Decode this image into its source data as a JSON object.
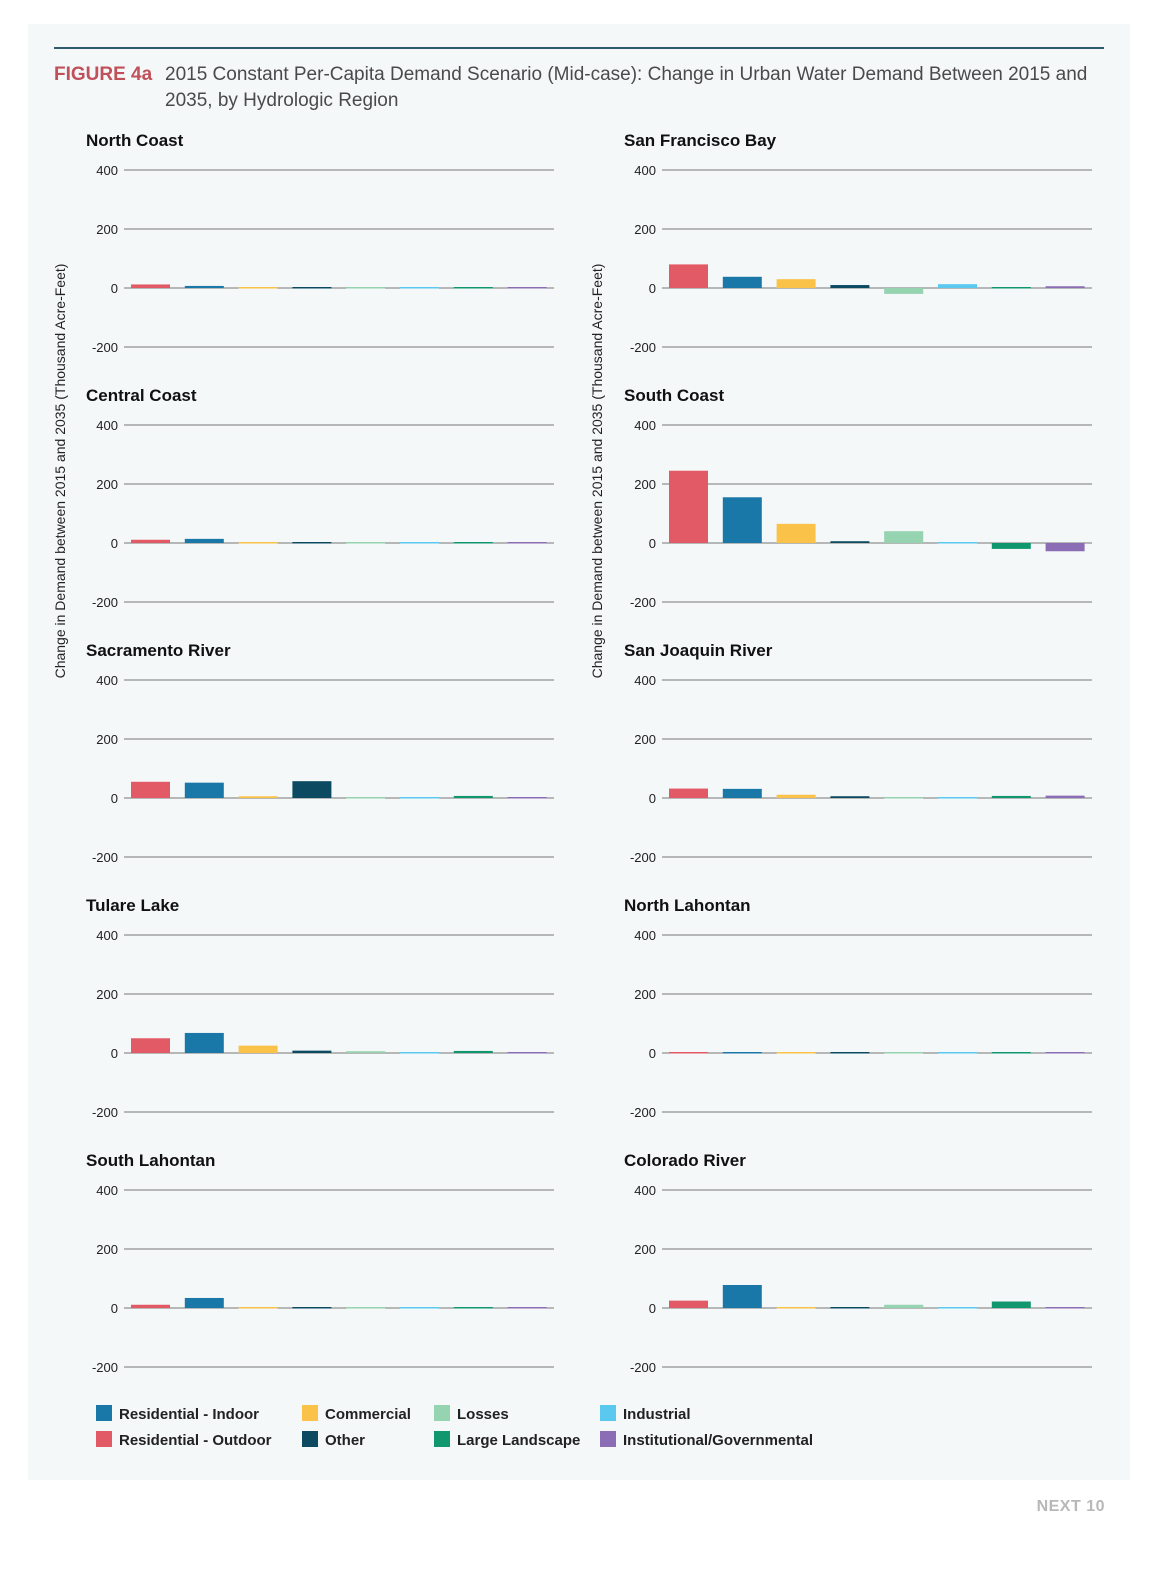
{
  "figure": {
    "number": "FIGURE 4a",
    "title": "2015 Constant Per-Capita Demand Scenario (Mid-case): Change in Urban Water Demand Between 2015 and 2035, by Hydrologic Region"
  },
  "ylabel": "Change in Demand between 2015 and 2035 (Thousand Acre-Feet)",
  "footer": "NEXT 10",
  "colors": {
    "Residential - Outdoor": "#e35a67",
    "Residential - Indoor": "#1a78a8",
    "Commercial": "#fbc24a",
    "Other": "#0c4a62",
    "Losses": "#96d3b0",
    "Industrial": "#5bc8f0",
    "Large Landscape": "#10976e",
    "Institutional/Governmental": "#8b6db5"
  },
  "legend": [
    {
      "label": "Residential - Indoor",
      "color": "#1a78a8"
    },
    {
      "label": "Residential - Outdoor",
      "color": "#e35a67"
    },
    {
      "label": "Commercial",
      "color": "#fbc24a"
    },
    {
      "label": "Other",
      "color": "#0c4a62"
    },
    {
      "label": "Losses",
      "color": "#96d3b0"
    },
    {
      "label": "Large Landscape",
      "color": "#10976e"
    },
    {
      "label": "Industrial",
      "color": "#5bc8f0"
    },
    {
      "label": "Institutional/Governmental",
      "color": "#8b6db5"
    }
  ],
  "chart_data": [
    {
      "type": "bar",
      "title": "North Coast",
      "categories": [
        "Residential - Outdoor",
        "Residential - Indoor",
        "Commercial",
        "Other",
        "Losses",
        "Industrial",
        "Large Landscape",
        "Institutional/Governmental"
      ],
      "values": [
        12,
        7,
        2,
        1,
        3,
        1,
        3,
        1
      ],
      "ylim": [
        -200,
        400
      ],
      "yticks": [
        400,
        200,
        0,
        -200
      ]
    },
    {
      "type": "bar",
      "title": "San Francisco Bay",
      "categories": [
        "Residential - Outdoor",
        "Residential - Indoor",
        "Commercial",
        "Other",
        "Losses",
        "Industrial",
        "Large Landscape",
        "Institutional/Governmental"
      ],
      "values": [
        80,
        38,
        30,
        10,
        -20,
        13,
        3,
        6
      ],
      "ylim": [
        -200,
        400
      ],
      "yticks": [
        400,
        200,
        0,
        -200
      ]
    },
    {
      "type": "bar",
      "title": "Central Coast",
      "categories": [
        "Residential - Outdoor",
        "Residential - Indoor",
        "Commercial",
        "Other",
        "Losses",
        "Industrial",
        "Large Landscape",
        "Institutional/Governmental"
      ],
      "values": [
        11,
        14,
        4,
        1,
        1,
        1,
        3,
        1
      ],
      "ylim": [
        -200,
        400
      ],
      "yticks": [
        400,
        200,
        0,
        -200
      ]
    },
    {
      "type": "bar",
      "title": "South Coast",
      "categories": [
        "Residential - Outdoor",
        "Residential - Indoor",
        "Commercial",
        "Other",
        "Losses",
        "Industrial",
        "Large Landscape",
        "Institutional/Governmental"
      ],
      "values": [
        245,
        155,
        65,
        6,
        40,
        2,
        -20,
        -28
      ],
      "ylim": [
        -200,
        400
      ],
      "yticks": [
        400,
        200,
        0,
        -200
      ]
    },
    {
      "type": "bar",
      "title": "Sacramento River",
      "categories": [
        "Residential - Outdoor",
        "Residential - Indoor",
        "Commercial",
        "Other",
        "Losses",
        "Industrial",
        "Large Landscape",
        "Institutional/Governmental"
      ],
      "values": [
        55,
        52,
        6,
        57,
        1,
        1,
        7,
        5
      ],
      "ylim": [
        -200,
        400
      ],
      "yticks": [
        400,
        200,
        0,
        -200
      ]
    },
    {
      "type": "bar",
      "title": "San Joaquin River",
      "categories": [
        "Residential - Outdoor",
        "Residential - Indoor",
        "Commercial",
        "Other",
        "Losses",
        "Industrial",
        "Large Landscape",
        "Institutional/Governmental"
      ],
      "values": [
        32,
        31,
        11,
        6,
        4,
        4,
        7,
        8
      ],
      "ylim": [
        -200,
        400
      ],
      "yticks": [
        400,
        200,
        0,
        -200
      ]
    },
    {
      "type": "bar",
      "title": "Tulare Lake",
      "categories": [
        "Residential - Outdoor",
        "Residential - Indoor",
        "Commercial",
        "Other",
        "Losses",
        "Industrial",
        "Large Landscape",
        "Institutional/Governmental"
      ],
      "values": [
        50,
        68,
        25,
        8,
        6,
        1,
        7,
        3
      ],
      "ylim": [
        -200,
        400
      ],
      "yticks": [
        400,
        200,
        0,
        -200
      ]
    },
    {
      "type": "bar",
      "title": "North Lahontan",
      "categories": [
        "Residential - Outdoor",
        "Residential - Indoor",
        "Commercial",
        "Other",
        "Losses",
        "Industrial",
        "Large Landscape",
        "Institutional/Governmental"
      ],
      "values": [
        1,
        1,
        1,
        1,
        0.5,
        1,
        0.5,
        0.5
      ],
      "ylim": [
        -200,
        400
      ],
      "yticks": [
        400,
        200,
        0,
        -200
      ]
    },
    {
      "type": "bar",
      "title": "South Lahontan",
      "categories": [
        "Residential - Outdoor",
        "Residential - Indoor",
        "Commercial",
        "Other",
        "Losses",
        "Industrial",
        "Large Landscape",
        "Institutional/Governmental"
      ],
      "values": [
        11,
        34,
        -3,
        1,
        3,
        5,
        1,
        1
      ],
      "ylim": [
        -200,
        400
      ],
      "yticks": [
        400,
        200,
        0,
        -200
      ]
    },
    {
      "type": "bar",
      "title": "Colorado River",
      "categories": [
        "Residential - Outdoor",
        "Residential - Indoor",
        "Commercial",
        "Other",
        "Losses",
        "Industrial",
        "Large Landscape",
        "Institutional/Governmental"
      ],
      "values": [
        25,
        78,
        2,
        3,
        11,
        1,
        22,
        1
      ],
      "ylim": [
        -200,
        400
      ],
      "yticks": [
        400,
        200,
        0,
        -200
      ]
    }
  ]
}
